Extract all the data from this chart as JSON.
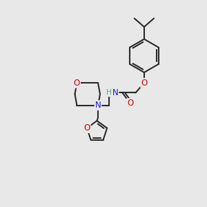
{
  "background_color": "#e8e8e8",
  "bond_color": "#2a2a2a",
  "bond_width": 1.5,
  "figsize": [
    3.0,
    3.0
  ],
  "dpi": 100,
  "atom_colors": {
    "O": "#cc0000",
    "N": "#1a1acc",
    "H": "#5a9a9a",
    "C": "#2a2a2a"
  },
  "font_size": 8.5,
  "xlim": [
    0,
    10
  ],
  "ylim": [
    0,
    10
  ]
}
